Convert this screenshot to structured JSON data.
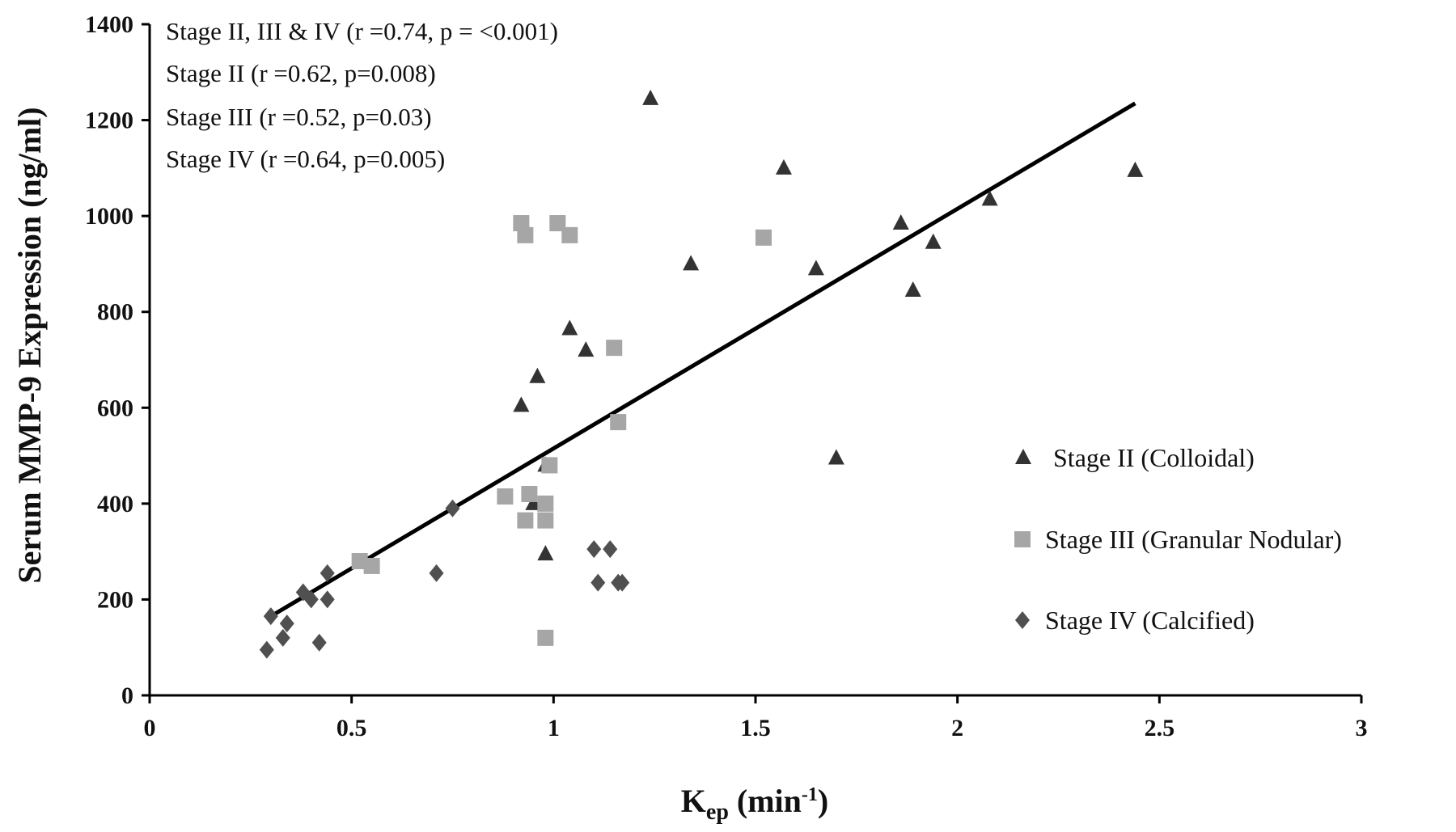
{
  "chart_data": {
    "type": "scatter",
    "ylabel": "Serum MMP-9 Expression (ng/ml)",
    "xlabel": {
      "base": "K",
      "sub": "ep",
      "unit_pre": " (min",
      "sup": "-1",
      "unit_post": ")"
    },
    "xlim": [
      0,
      3
    ],
    "ylim": [
      0,
      1400
    ],
    "xticks": [
      "0",
      "0.5",
      "1",
      "1.5",
      "2",
      "2.5",
      "3"
    ],
    "yticks": [
      "0",
      "200",
      "400",
      "600",
      "800",
      "1000",
      "1200",
      "1400"
    ],
    "annotations": [
      "Stage II, III & IV (r =0.74, p = <0.001)",
      "Stage II (r =0.62, p=0.008)",
      "Stage III (r =0.52, p=0.03)",
      "Stage IV (r =0.64, p=0.005)"
    ],
    "legend_position": "right",
    "trendline": {
      "x": [
        0.29,
        2.44
      ],
      "y": [
        160,
        1235
      ],
      "color": "#000000"
    },
    "series": [
      {
        "name": "Stage II (Colloidal)",
        "marker": "triangle",
        "color": "#333333",
        "x": [
          1.24,
          1.34,
          1.57,
          1.65,
          1.7,
          1.86,
          1.89,
          1.94,
          2.08,
          2.44,
          0.92,
          0.96,
          1.04,
          1.08,
          0.98,
          0.98,
          0.95
        ],
        "y": [
          1245,
          900,
          1100,
          890,
          495,
          985,
          845,
          945,
          1035,
          1095,
          605,
          665,
          765,
          720,
          480,
          295,
          400
        ]
      },
      {
        "name": "Stage III (Granular Nodular)",
        "marker": "square",
        "color": "#a6a6a6",
        "x": [
          0.92,
          0.93,
          1.01,
          1.04,
          1.52,
          1.15,
          1.16,
          0.88,
          0.94,
          0.99,
          0.98,
          0.93,
          0.98,
          0.52,
          0.55,
          0.98
        ],
        "y": [
          985,
          960,
          985,
          960,
          955,
          725,
          570,
          415,
          420,
          480,
          400,
          365,
          365,
          280,
          270,
          120
        ]
      },
      {
        "name": "Stage IV (Calcified)",
        "marker": "diamond",
        "color": "#505050",
        "x": [
          0.29,
          0.3,
          0.33,
          0.34,
          0.38,
          0.4,
          0.42,
          0.44,
          0.44,
          0.71,
          0.75,
          1.1,
          1.14,
          1.11,
          1.16,
          1.17
        ],
        "y": [
          95,
          165,
          120,
          150,
          215,
          200,
          110,
          255,
          200,
          255,
          390,
          305,
          305,
          235,
          235,
          235
        ]
      }
    ]
  }
}
